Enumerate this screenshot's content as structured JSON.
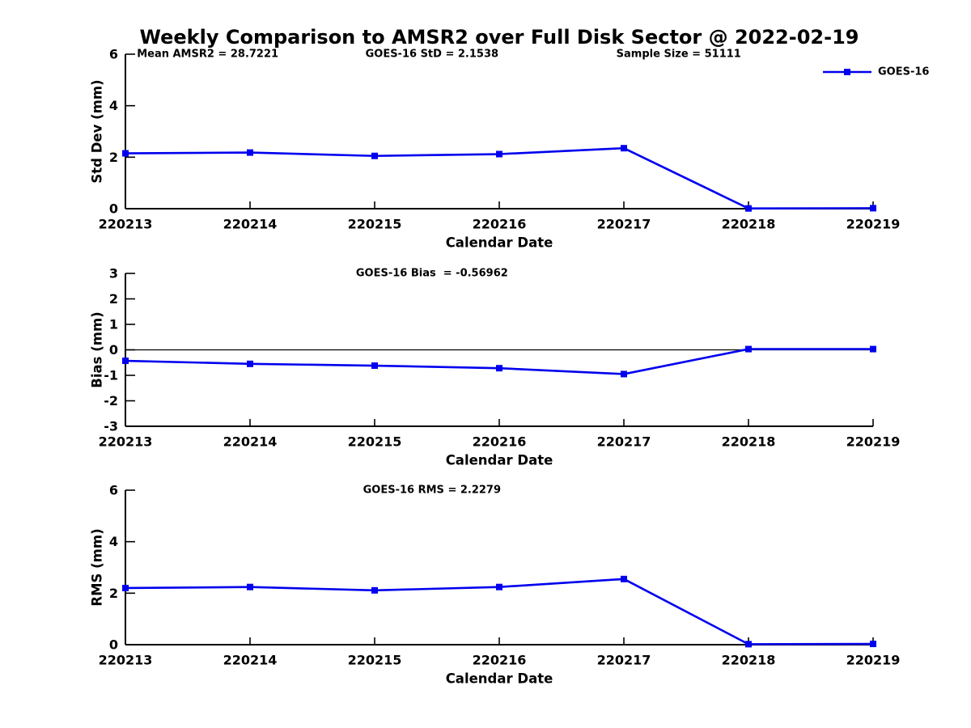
{
  "figure_title": "Weekly Comparison to AMSR2 over Full Disk Sector @ 2022-02-19",
  "colors": {
    "series": "#0000EE",
    "axis": "#000000",
    "text": "#000000",
    "background": "#FFFFFF"
  },
  "legend": {
    "label": "GOES-16",
    "position": "top-right-inside-first-subplot"
  },
  "chart_data": [
    {
      "type": "line",
      "name": "std-dev",
      "xlabel": "Calendar Date",
      "ylabel": "Std Dev (mm)",
      "categories": [
        "220213",
        "220214",
        "220215",
        "220216",
        "220217",
        "220218",
        "220219"
      ],
      "series": [
        {
          "name": "GOES-16",
          "color": "#0000EE",
          "marker": "square",
          "values": [
            2.15,
            2.18,
            2.05,
            2.12,
            2.35,
            0.01,
            0.02
          ]
        }
      ],
      "ylim": [
        0,
        6
      ],
      "yticks": [
        0,
        2,
        4,
        6
      ],
      "grid": false,
      "zero_line": false,
      "show_legend": true,
      "annotations": [
        {
          "text": "Mean AMSR2 = 28.7221",
          "xfrac": 0.11
        },
        {
          "text": "GOES-16 StD = 2.1538",
          "xfrac": 0.41
        },
        {
          "text": "Sample Size = 51111",
          "xfrac": 0.74
        }
      ]
    },
    {
      "type": "line",
      "name": "bias",
      "xlabel": "Calendar Date",
      "ylabel": "Bias (mm)",
      "categories": [
        "220213",
        "220214",
        "220215",
        "220216",
        "220217",
        "220218",
        "220219"
      ],
      "series": [
        {
          "name": "GOES-16",
          "color": "#0000EE",
          "marker": "square",
          "values": [
            -0.43,
            -0.55,
            -0.62,
            -0.72,
            -0.95,
            0.03,
            0.03
          ]
        }
      ],
      "ylim": [
        -3,
        3
      ],
      "yticks": [
        -3,
        -2,
        -1,
        0,
        1,
        2,
        3
      ],
      "grid": false,
      "zero_line": true,
      "show_legend": false,
      "annotations": [
        {
          "text": "GOES-16 Bias  = -0.56962",
          "xfrac": 0.41
        }
      ]
    },
    {
      "type": "line",
      "name": "rms",
      "xlabel": "Calendar Date",
      "ylabel": "RMS (mm)",
      "categories": [
        "220213",
        "220214",
        "220215",
        "220216",
        "220217",
        "220218",
        "220219"
      ],
      "series": [
        {
          "name": "GOES-16",
          "color": "#0000EE",
          "marker": "square",
          "values": [
            2.2,
            2.24,
            2.11,
            2.24,
            2.55,
            0.02,
            0.03
          ]
        }
      ],
      "ylim": [
        0,
        6
      ],
      "yticks": [
        0,
        2,
        4,
        6
      ],
      "grid": false,
      "zero_line": false,
      "show_legend": false,
      "annotations": [
        {
          "text": "GOES-16 RMS = 2.2279",
          "xfrac": 0.41
        }
      ]
    }
  ]
}
